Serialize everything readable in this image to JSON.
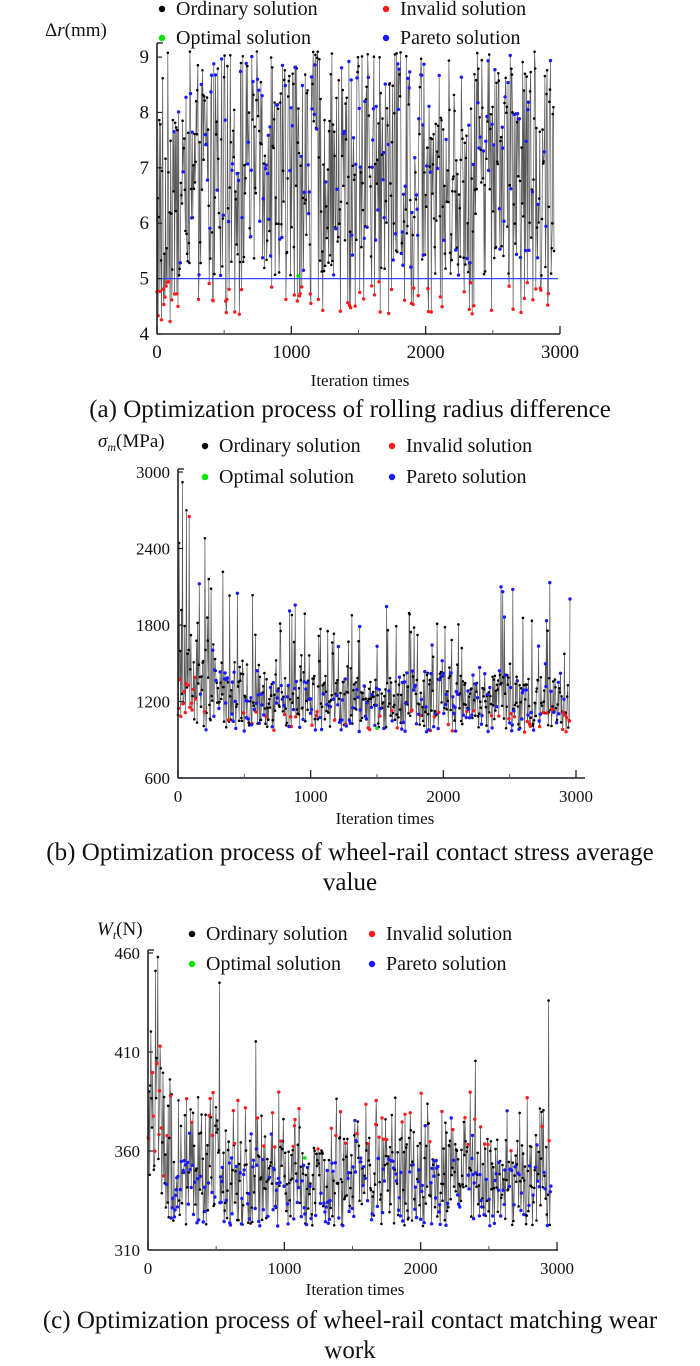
{
  "legend": {
    "items": [
      {
        "label": "Ordinary solution",
        "color": "#000000"
      },
      {
        "label": "Invalid solution",
        "color": "#ff1a1a"
      },
      {
        "label": "Optimal solution",
        "color": "#00e600"
      },
      {
        "label": "Pareto solution",
        "color": "#1a1aff"
      }
    ]
  },
  "chart_data": [
    {
      "type": "scatter",
      "title": "(a) Optimization process of rolling radius difference",
      "ylabel_symbol": "Δr",
      "ylabel_unit": "(mm)",
      "xlabel": "Iteration times",
      "xlim": [
        0,
        3000
      ],
      "ylim": [
        4,
        9.2
      ],
      "xticks": [
        "0",
        "1000",
        "2000",
        "3000"
      ],
      "yticks": [
        "4",
        "5",
        "6",
        "7",
        "8",
        "9"
      ],
      "ytick_values": [
        4,
        5,
        6,
        7,
        8,
        9
      ],
      "reference_line": 5,
      "series_summary": {
        "Ordinary solution": {
          "range": [
            5.0,
            9.1
          ],
          "count_approx": 3000
        },
        "Invalid solution": {
          "range": [
            4.2,
            4.95
          ]
        },
        "Pareto solution": {
          "range": [
            5.0,
            9.1
          ]
        },
        "Optimal solution": {
          "range": [
            5.0,
            5.1
          ]
        }
      },
      "legend_placement": "top",
      "grid": false
    },
    {
      "type": "scatter",
      "title": "(b) Optimization process of wheel-rail contact stress average value",
      "ylabel_symbol": "σm",
      "ylabel_unit": "(MPa)",
      "xlabel": "Iteration times",
      "xlim": [
        0,
        3000
      ],
      "ylim": [
        600,
        3000
      ],
      "xticks": [
        "0",
        "1000",
        "2000",
        "3000"
      ],
      "yticks": [
        "600",
        "1200",
        "1800",
        "2400",
        "3000"
      ],
      "ytick_values": [
        600,
        1200,
        1800,
        2400,
        3000
      ],
      "reference_line": 600,
      "series_summary": {
        "Ordinary solution": {
          "range": [
            950,
            2900
          ]
        },
        "Invalid solution": {
          "range": [
            950,
            1400
          ]
        },
        "Pareto solution": {
          "range": [
            950,
            2250
          ]
        },
        "Optimal solution": {
          "range": [
            980,
            1000
          ]
        }
      },
      "legend_placement": "top",
      "grid": false
    },
    {
      "type": "scatter",
      "title": "(c) Optimization process of wheel-rail contact matching wear work",
      "ylabel_symbol": "Wt",
      "ylabel_unit": "(N)",
      "xlabel": "Iteration times",
      "xlim": [
        0,
        3000
      ],
      "ylim": [
        310,
        460
      ],
      "xticks": [
        "0",
        "1000",
        "2000",
        "3000"
      ],
      "yticks": [
        "310",
        "360",
        "410",
        "460"
      ],
      "ytick_values": [
        310,
        360,
        410,
        460
      ],
      "reference_line": null,
      "series_summary": {
        "Ordinary solution": {
          "range": [
            322,
            458
          ]
        },
        "Invalid solution": {
          "range": [
            335,
            430
          ]
        },
        "Pareto solution": {
          "range": [
            322,
            385
          ]
        },
        "Optimal solution": {
          "range": [
            355,
            358
          ]
        }
      },
      "legend_placement": "top",
      "grid": false
    }
  ],
  "captions": {
    "a": "(a) Optimization process of rolling radius difference",
    "b_line1": "(b) Optimization process of wheel-rail contact stress average",
    "b_line2": "value",
    "c_line1": "(c) Optimization process of wheel-rail contact matching wear",
    "c_line2": "work"
  }
}
